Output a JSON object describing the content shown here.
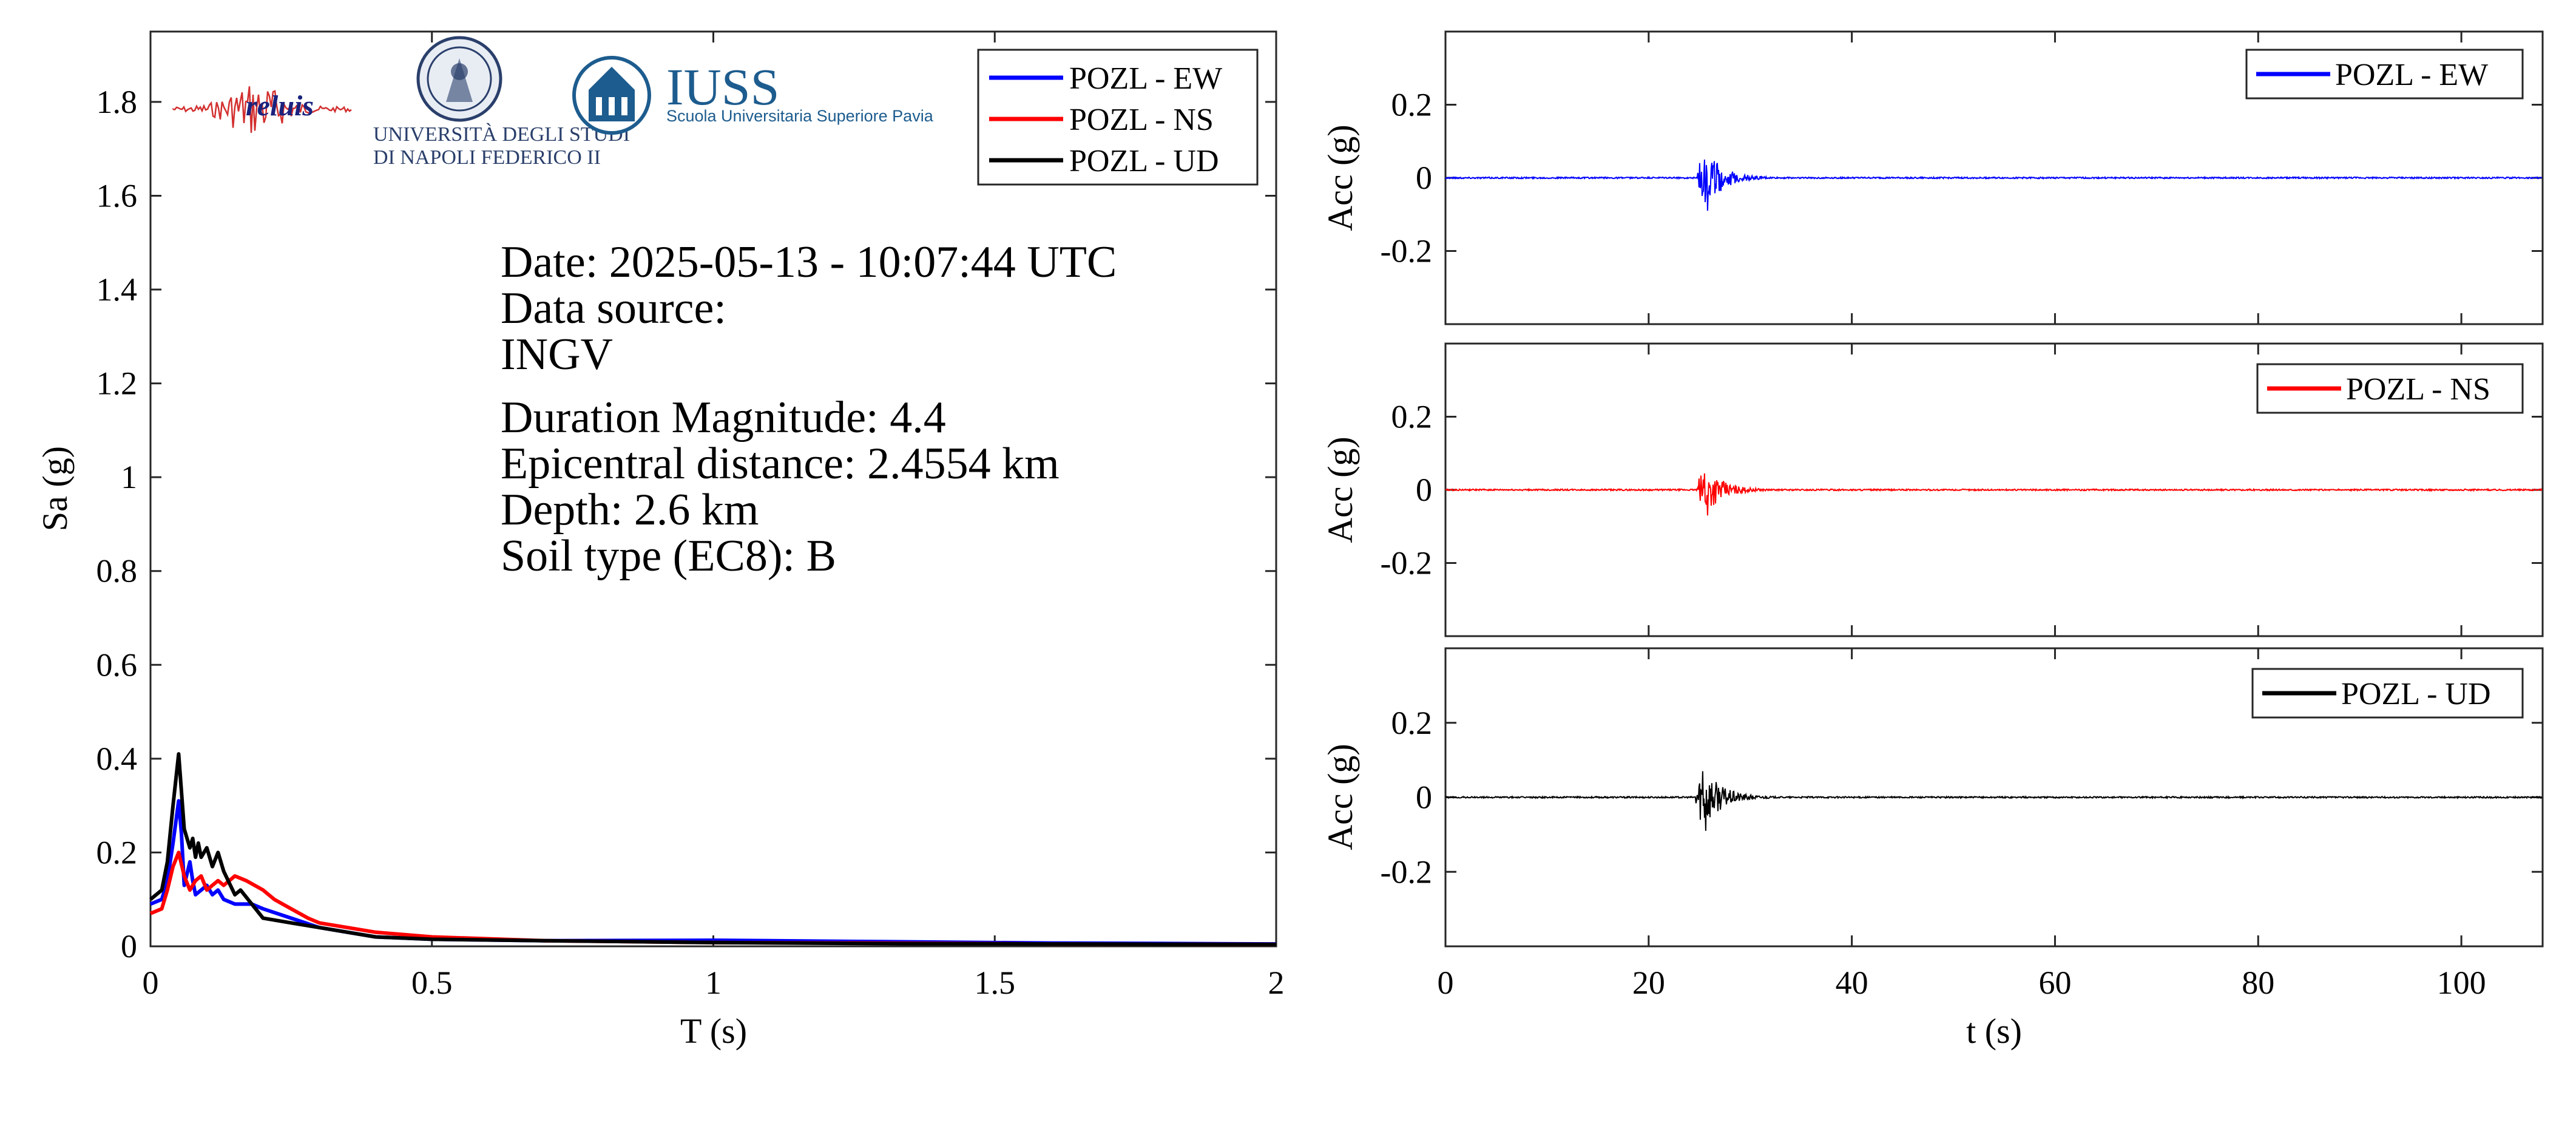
{
  "logos": {
    "reluis": {
      "text": "reluis"
    },
    "unina": {
      "line1": "UNIVERSITÀ DEGLI STUDI",
      "line2": "DI NAPOLI FEDERICO II"
    },
    "iuss": {
      "name": "IUSS",
      "subtitle": "Scuola Universitaria Superiore Pavia"
    }
  },
  "info": {
    "date": "Date: 2025-05-13 - 10:07:44 UTC",
    "source_label": "Data source:",
    "source": "INGV",
    "magnitude": "Duration Magnitude: 4.4",
    "distance": "Epicentral distance: 2.4554 km",
    "depth": "Depth: 2.6 km",
    "soil": "Soil type (EC8): B"
  },
  "colors": {
    "ew": "#0000ff",
    "ns": "#ff0000",
    "ud": "#000000"
  },
  "chart_data": [
    {
      "type": "line",
      "xlabel": "T (s)",
      "ylabel": "Sa (g)",
      "xlim": [
        0,
        2
      ],
      "ylim": [
        0,
        1.95
      ],
      "xticks": [
        0,
        0.5,
        1,
        1.5,
        2
      ],
      "xtick_labels": [
        "0",
        "0.5",
        "1",
        "1.5",
        "2"
      ],
      "yticks": [
        0,
        0.2,
        0.4,
        0.6,
        0.8,
        1,
        1.2,
        1.4,
        1.6,
        1.8
      ],
      "ytick_labels": [
        "0",
        "0.2",
        "0.4",
        "0.6",
        "0.8",
        "1",
        "1.2",
        "1.4",
        "1.6",
        "1.8"
      ],
      "legend_position": "top-right",
      "series": [
        {
          "name": "POZL - EW",
          "color": "#0000ff",
          "x": [
            0,
            0.02,
            0.03,
            0.04,
            0.05,
            0.055,
            0.06,
            0.07,
            0.075,
            0.08,
            0.09,
            0.1,
            0.11,
            0.12,
            0.13,
            0.15,
            0.18,
            0.2,
            0.25,
            0.3,
            0.4,
            0.5,
            0.7,
            1.0,
            1.3,
            1.6,
            2.0
          ],
          "y": [
            0.09,
            0.1,
            0.14,
            0.22,
            0.31,
            0.24,
            0.13,
            0.18,
            0.14,
            0.11,
            0.12,
            0.13,
            0.11,
            0.12,
            0.1,
            0.09,
            0.09,
            0.08,
            0.06,
            0.04,
            0.02,
            0.015,
            0.012,
            0.013,
            0.01,
            0.007,
            0.005
          ]
        },
        {
          "name": "POZL - NS",
          "color": "#ff0000",
          "x": [
            0,
            0.02,
            0.03,
            0.04,
            0.05,
            0.06,
            0.07,
            0.08,
            0.09,
            0.1,
            0.11,
            0.12,
            0.13,
            0.14,
            0.15,
            0.17,
            0.2,
            0.22,
            0.25,
            0.28,
            0.3,
            0.35,
            0.4,
            0.5,
            0.7,
            1.0,
            1.3,
            1.6,
            2.0
          ],
          "y": [
            0.07,
            0.08,
            0.12,
            0.17,
            0.2,
            0.15,
            0.12,
            0.14,
            0.15,
            0.12,
            0.13,
            0.14,
            0.13,
            0.14,
            0.15,
            0.14,
            0.12,
            0.1,
            0.08,
            0.06,
            0.05,
            0.04,
            0.03,
            0.02,
            0.012,
            0.008,
            0.007,
            0.005,
            0.004
          ]
        },
        {
          "name": "POZL - UD",
          "color": "#000000",
          "x": [
            0,
            0.02,
            0.03,
            0.04,
            0.05,
            0.06,
            0.07,
            0.075,
            0.08,
            0.085,
            0.09,
            0.1,
            0.11,
            0.12,
            0.13,
            0.15,
            0.16,
            0.18,
            0.2,
            0.25,
            0.3,
            0.35,
            0.4,
            0.5,
            0.7,
            1.0,
            1.3,
            1.6,
            2.0
          ],
          "y": [
            0.1,
            0.12,
            0.18,
            0.3,
            0.41,
            0.25,
            0.21,
            0.23,
            0.19,
            0.22,
            0.19,
            0.21,
            0.17,
            0.2,
            0.16,
            0.11,
            0.12,
            0.09,
            0.06,
            0.05,
            0.04,
            0.03,
            0.02,
            0.015,
            0.012,
            0.008,
            0.006,
            0.005,
            0.004
          ]
        }
      ]
    },
    {
      "type": "line",
      "xlabel": "",
      "ylabel": "Acc (g)",
      "xlim": [
        0,
        108
      ],
      "ylim": [
        -0.4,
        0.4
      ],
      "yticks": [
        -0.2,
        0,
        0.2
      ],
      "ytick_labels": [
        "-0.2",
        "0",
        "0.2"
      ],
      "legend_position": "top-right",
      "series": [
        {
          "name": "POZL - EW",
          "color": "#0000ff",
          "onset_s": 24.8,
          "peak_pos_g": 0.05,
          "peak_neg_g": -0.09,
          "coda_end_s": 32,
          "noise_g": 0.002
        }
      ]
    },
    {
      "type": "line",
      "xlabel": "",
      "ylabel": "Acc (g)",
      "xlim": [
        0,
        108
      ],
      "ylim": [
        -0.4,
        0.4
      ],
      "yticks": [
        -0.2,
        0,
        0.2
      ],
      "ytick_labels": [
        "-0.2",
        "0",
        "0.2"
      ],
      "legend_position": "top-right",
      "series": [
        {
          "name": "POZL - NS",
          "color": "#ff0000",
          "onset_s": 24.8,
          "peak_pos_g": 0.045,
          "peak_neg_g": -0.07,
          "coda_end_s": 33,
          "noise_g": 0.002
        }
      ]
    },
    {
      "type": "line",
      "xlabel": "t (s)",
      "ylabel": "Acc (g)",
      "xlim": [
        0,
        108
      ],
      "ylim": [
        -0.4,
        0.4
      ],
      "xticks": [
        0,
        20,
        40,
        60,
        80,
        100
      ],
      "xtick_labels": [
        "0",
        "20",
        "40",
        "60",
        "80",
        "100"
      ],
      "yticks": [
        -0.2,
        0,
        0.2
      ],
      "ytick_labels": [
        "-0.2",
        "0",
        "0.2"
      ],
      "legend_position": "top-right",
      "series": [
        {
          "name": "POZL - UD",
          "color": "#000000",
          "onset_s": 24.6,
          "peak_pos_g": 0.07,
          "peak_neg_g": -0.09,
          "coda_end_s": 33,
          "noise_g": 0.002
        }
      ]
    }
  ]
}
